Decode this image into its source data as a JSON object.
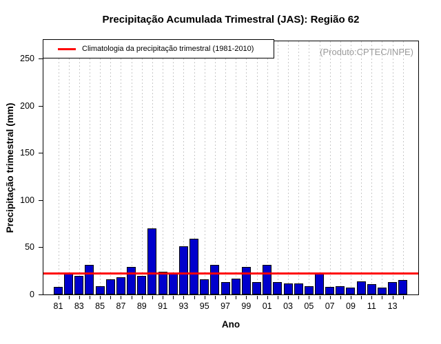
{
  "chart": {
    "title": "Precipitação Acumulada Trimestral (JAS): Região 62",
    "source_note": "(Produto:CPTEC/INPE)",
    "legend_label": "Climatologia da precipitação trimestral (1981-2010)",
    "x_axis_label": "Ano",
    "y_axis_label": "Precipitação trimestral (mm)"
  },
  "chart_data": {
    "type": "bar",
    "title": "Precipitação Acumulada Trimestral (JAS): Região 62",
    "xlabel": "Ano",
    "ylabel": "Precipitação trimestral (mm)",
    "categories": [
      "81",
      "82",
      "83",
      "84",
      "85",
      "86",
      "87",
      "88",
      "89",
      "90",
      "91",
      "92",
      "93",
      "94",
      "95",
      "96",
      "97",
      "98",
      "99",
      "00",
      "01",
      "02",
      "03",
      "04",
      "05",
      "06",
      "07",
      "08",
      "09",
      "10",
      "11",
      "12",
      "13",
      "14"
    ],
    "values": [
      8,
      22,
      20,
      31,
      9,
      16,
      18,
      29,
      20,
      70,
      24,
      23,
      51,
      59,
      16,
      31,
      13,
      17,
      29,
      13,
      31,
      13,
      12,
      12,
      9,
      22,
      8,
      9,
      7,
      14,
      11,
      7,
      13,
      15
    ],
    "x_tick_labels": [
      "81",
      "83",
      "85",
      "87",
      "89",
      "91",
      "93",
      "95",
      "97",
      "99",
      "01",
      "03",
      "05",
      "07",
      "09",
      "11",
      "13"
    ],
    "yticks": [
      0,
      50,
      100,
      150,
      200,
      250
    ],
    "ylim": [
      0,
      268
    ],
    "grid": "vertical-dashed",
    "legend": {
      "label": "Climatologia da precipitação trimestral (1981-2010)",
      "position": "top-left"
    },
    "climatology_value": 22,
    "colors": {
      "bar_fill": "#0000CC",
      "bar_border": "#000000",
      "climatology_line": "#FF0000",
      "gridline": "#C8C8C8",
      "source_note_text": "#999999",
      "axis_text": "#000000"
    }
  }
}
